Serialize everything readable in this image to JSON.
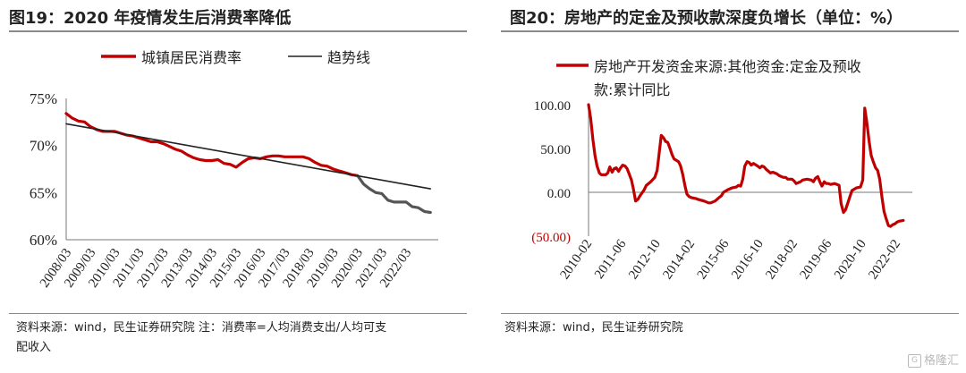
{
  "left": {
    "title": "图19：2020 年疫情发生后消费率降低",
    "legend": [
      {
        "name": "城镇居民消费率",
        "color": "#c00000"
      },
      {
        "name": "趋势线",
        "color": "#222222"
      }
    ],
    "source_line1": "资料来源：wind，民生证券研究院 注：消费率=人均消费支出/人均可支",
    "source_line2": "配收入"
  },
  "right": {
    "title": "图20：房地产的定金及预收款深度负增长（单位：%）",
    "legend": [
      {
        "name_line1": "房地产开发资金来源:其他资金:定金及预收",
        "name_line2": "款:累计同比",
        "color": "#c00000"
      }
    ],
    "source_line1": "资料来源：wind，民生证券研究院"
  },
  "watermark": {
    "icon": "G",
    "text": "格隆汇"
  },
  "chart_data": [
    {
      "type": "line",
      "ylim": [
        60,
        75
      ],
      "xlim": [
        2008.0,
        2023.25
      ],
      "y_tick_labels": [
        "75%",
        "70%",
        "65%",
        "60%"
      ],
      "y_ticks": [
        75,
        70,
        65,
        60
      ],
      "x_tick_labels": [
        "2008/03",
        "2009/03",
        "2010/03",
        "2011/03",
        "2012/03",
        "2013/03",
        "2014/03",
        "2015/03",
        "2016/03",
        "2017/03",
        "2018/03",
        "2019/03",
        "2020/03",
        "2021/03",
        "2022/03"
      ],
      "x_ticks": [
        2008.0,
        2009.0,
        2010.0,
        2011.0,
        2012.0,
        2013.0,
        2014.0,
        2015.0,
        2016.0,
        2017.0,
        2018.0,
        2019.0,
        2020.0,
        2021.0,
        2022.0
      ],
      "series": [
        {
          "name": "城镇居民消费率",
          "color": "#c00000",
          "points": [
            [
              2008.0,
              73.4
            ],
            [
              2008.25,
              72.9
            ],
            [
              2008.5,
              72.6
            ],
            [
              2008.75,
              72.5
            ],
            [
              2009.0,
              72.0
            ],
            [
              2009.25,
              71.7
            ],
            [
              2009.5,
              71.5
            ],
            [
              2009.75,
              71.5
            ],
            [
              2010.0,
              71.5
            ],
            [
              2010.25,
              71.3
            ],
            [
              2010.5,
              71.1
            ],
            [
              2010.75,
              71.0
            ],
            [
              2011.0,
              70.8
            ],
            [
              2011.25,
              70.6
            ],
            [
              2011.5,
              70.4
            ],
            [
              2011.75,
              70.4
            ],
            [
              2012.0,
              70.2
            ],
            [
              2012.25,
              69.9
            ],
            [
              2012.5,
              69.6
            ],
            [
              2012.75,
              69.4
            ],
            [
              2013.0,
              69.0
            ],
            [
              2013.25,
              68.7
            ],
            [
              2013.5,
              68.5
            ],
            [
              2013.75,
              68.4
            ],
            [
              2014.0,
              68.4
            ],
            [
              2014.25,
              68.5
            ],
            [
              2014.5,
              68.1
            ],
            [
              2014.75,
              68.0
            ],
            [
              2015.0,
              67.7
            ],
            [
              2015.25,
              68.2
            ],
            [
              2015.5,
              68.6
            ],
            [
              2015.75,
              68.7
            ],
            [
              2016.0,
              68.6
            ],
            [
              2016.25,
              68.8
            ],
            [
              2016.5,
              68.9
            ],
            [
              2016.75,
              68.9
            ],
            [
              2017.0,
              68.8
            ],
            [
              2017.25,
              68.8
            ],
            [
              2017.5,
              68.8
            ],
            [
              2017.75,
              68.8
            ],
            [
              2018.0,
              68.6
            ],
            [
              2018.25,
              68.2
            ],
            [
              2018.5,
              67.9
            ],
            [
              2018.75,
              67.8
            ],
            [
              2019.0,
              67.5
            ],
            [
              2019.25,
              67.3
            ],
            [
              2019.5,
              67.1
            ],
            [
              2019.75,
              66.9
            ],
            [
              2020.0,
              66.8
            ]
          ]
        },
        {
          "name": "城镇居民消费率",
          "color": "#555555",
          "points": [
            [
              2020.0,
              66.8
            ],
            [
              2020.25,
              65.9
            ],
            [
              2020.5,
              65.4
            ],
            [
              2020.75,
              65.0
            ],
            [
              2021.0,
              64.9
            ],
            [
              2021.25,
              64.2
            ],
            [
              2021.5,
              64.0
            ],
            [
              2021.75,
              64.0
            ],
            [
              2022.0,
              64.0
            ],
            [
              2022.25,
              63.5
            ],
            [
              2022.5,
              63.4
            ],
            [
              2022.75,
              63.0
            ],
            [
              2023.0,
              62.9
            ]
          ]
        },
        {
          "name": "趋势线",
          "color": "#222222",
          "points": [
            [
              2008.0,
              72.3
            ],
            [
              2023.0,
              65.4
            ]
          ]
        }
      ]
    },
    {
      "type": "line",
      "ylim": [
        -50,
        100
      ],
      "xlim": [
        2010.0,
        2022.6
      ],
      "y_tick_labels": [
        "100.00",
        "50.00",
        "0.00",
        "(50.00)"
      ],
      "y_ticks": [
        100,
        50,
        0,
        -50
      ],
      "x_tick_labels": [
        "2010-02",
        "2011-06",
        "2012-10",
        "2014-02",
        "2015-06",
        "2016-10",
        "2018-02",
        "2019-06",
        "2020-10",
        "2022-02"
      ],
      "x_ticks": [
        2010.0,
        2011.33,
        2012.67,
        2014.0,
        2015.33,
        2016.67,
        2018.0,
        2019.33,
        2020.67,
        2022.0
      ],
      "series": [
        {
          "name": "房地产开发资金来源:其他资金:定金及预收款:累计同比",
          "color": "#c00000",
          "points": [
            [
              2010.0,
              100
            ],
            [
              2010.08,
              85
            ],
            [
              2010.17,
              60
            ],
            [
              2010.25,
              42
            ],
            [
              2010.33,
              30
            ],
            [
              2010.42,
              22
            ],
            [
              2010.5,
              20
            ],
            [
              2010.67,
              20
            ],
            [
              2010.75,
              22
            ],
            [
              2010.83,
              29
            ],
            [
              2010.92,
              23
            ],
            [
              2011.0,
              27
            ],
            [
              2011.08,
              28
            ],
            [
              2011.17,
              24
            ],
            [
              2011.25,
              28
            ],
            [
              2011.33,
              31
            ],
            [
              2011.42,
              30
            ],
            [
              2011.5,
              27
            ],
            [
              2011.58,
              21
            ],
            [
              2011.67,
              14
            ],
            [
              2011.75,
              3
            ],
            [
              2011.83,
              -10
            ],
            [
              2011.92,
              -8
            ],
            [
              2012.0,
              -4
            ],
            [
              2012.17,
              3
            ],
            [
              2012.25,
              8
            ],
            [
              2012.42,
              12
            ],
            [
              2012.58,
              17
            ],
            [
              2012.67,
              25
            ],
            [
              2012.75,
              45
            ],
            [
              2012.83,
              65
            ],
            [
              2012.92,
              62
            ],
            [
              2013.0,
              58
            ],
            [
              2013.08,
              57
            ],
            [
              2013.17,
              50
            ],
            [
              2013.25,
              43
            ],
            [
              2013.33,
              38
            ],
            [
              2013.5,
              35
            ],
            [
              2013.58,
              30
            ],
            [
              2013.67,
              20
            ],
            [
              2013.75,
              8
            ],
            [
              2013.83,
              -2
            ],
            [
              2013.92,
              -5
            ],
            [
              2014.0,
              -6
            ],
            [
              2014.17,
              -7
            ],
            [
              2014.25,
              -8
            ],
            [
              2014.5,
              -10
            ],
            [
              2014.67,
              -12
            ],
            [
              2014.75,
              -12
            ],
            [
              2014.92,
              -10
            ],
            [
              2015.08,
              -6
            ],
            [
              2015.17,
              -4
            ],
            [
              2015.25,
              0
            ],
            [
              2015.42,
              3
            ],
            [
              2015.58,
              5
            ],
            [
              2015.75,
              6
            ],
            [
              2015.83,
              8
            ],
            [
              2015.92,
              7
            ],
            [
              2016.0,
              15
            ],
            [
              2016.08,
              30
            ],
            [
              2016.17,
              35
            ],
            [
              2016.25,
              34
            ],
            [
              2016.33,
              31
            ],
            [
              2016.42,
              33
            ],
            [
              2016.58,
              30
            ],
            [
              2016.67,
              28
            ],
            [
              2016.75,
              30
            ],
            [
              2016.83,
              29
            ],
            [
              2016.92,
              26
            ],
            [
              2017.08,
              22
            ],
            [
              2017.17,
              23
            ],
            [
              2017.33,
              21
            ],
            [
              2017.42,
              19
            ],
            [
              2017.58,
              17
            ],
            [
              2017.67,
              17
            ],
            [
              2017.75,
              15
            ],
            [
              2017.92,
              15
            ],
            [
              2018.0,
              13
            ],
            [
              2018.08,
              10
            ],
            [
              2018.25,
              12
            ],
            [
              2018.33,
              14
            ],
            [
              2018.5,
              15
            ],
            [
              2018.67,
              14
            ],
            [
              2018.75,
              12
            ],
            [
              2018.83,
              16
            ],
            [
              2018.92,
              18
            ],
            [
              2019.0,
              12
            ],
            [
              2019.08,
              7
            ],
            [
              2019.17,
              12
            ],
            [
              2019.25,
              10
            ],
            [
              2019.33,
              10
            ],
            [
              2019.42,
              9
            ],
            [
              2019.58,
              10
            ],
            [
              2019.67,
              9
            ],
            [
              2019.75,
              8
            ],
            [
              2019.83,
              -13
            ],
            [
              2019.92,
              -23
            ],
            [
              2020.0,
              -20
            ],
            [
              2020.08,
              -13
            ],
            [
              2020.17,
              -5
            ],
            [
              2020.25,
              2
            ],
            [
              2020.42,
              5
            ],
            [
              2020.58,
              6
            ],
            [
              2020.67,
              14
            ],
            [
              2020.75,
              96
            ],
            [
              2020.83,
              80
            ],
            [
              2020.92,
              58
            ],
            [
              2021.0,
              42
            ],
            [
              2021.08,
              35
            ],
            [
              2021.17,
              28
            ],
            [
              2021.25,
              25
            ],
            [
              2021.33,
              15
            ],
            [
              2021.42,
              -6
            ],
            [
              2021.5,
              -22
            ],
            [
              2021.58,
              -30
            ],
            [
              2021.67,
              -38
            ],
            [
              2021.75,
              -39
            ],
            [
              2021.83,
              -37
            ],
            [
              2021.92,
              -36
            ],
            [
              2022.0,
              -34
            ],
            [
              2022.08,
              -33
            ],
            [
              2022.25,
              -32
            ]
          ]
        }
      ]
    }
  ]
}
